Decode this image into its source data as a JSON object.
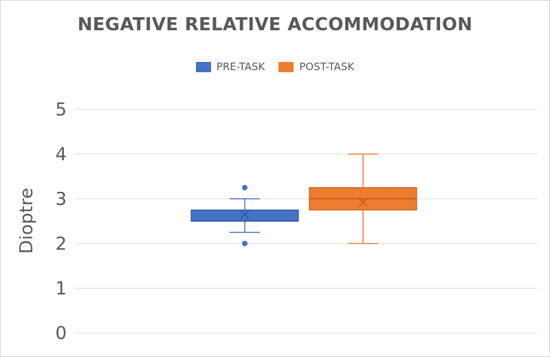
{
  "chart_data": {
    "type": "box",
    "title": "NEGATIVE RELATIVE ACCOMMODATION",
    "xlabel": "",
    "ylabel": "Dioptre",
    "ylim": [
      0,
      5
    ],
    "yticks": [
      "0",
      "1",
      "2",
      "3",
      "4",
      "5"
    ],
    "grid": true,
    "legend_position": "top",
    "series": [
      {
        "name": "PRE-TASK",
        "color": "#4472c4",
        "min": 2.25,
        "q1": 2.5,
        "median": 2.5,
        "q3": 2.75,
        "max": 3.0,
        "mean": 2.65,
        "outliers": [
          3.25,
          2.0
        ]
      },
      {
        "name": "POST-TASK",
        "color": "#ed7d31",
        "min": 2.0,
        "q1": 2.75,
        "median": 3.0,
        "q3": 3.25,
        "max": 4.0,
        "mean": 2.92,
        "outliers": []
      }
    ]
  }
}
